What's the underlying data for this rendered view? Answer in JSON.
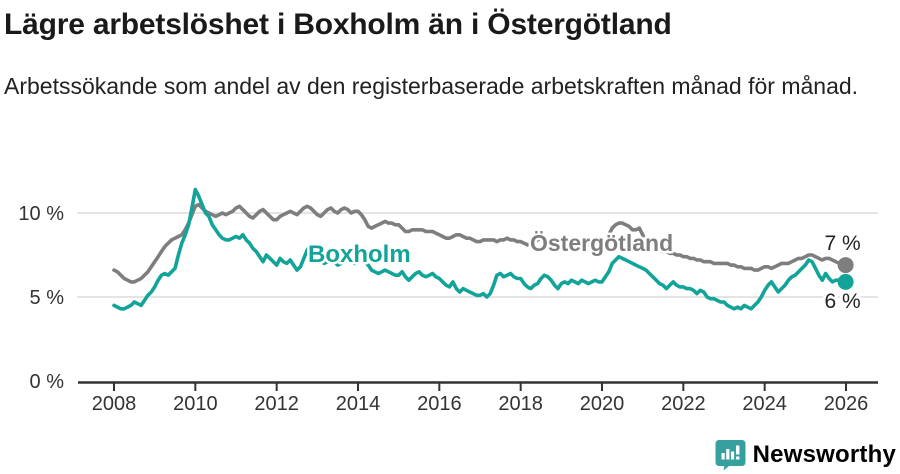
{
  "header": {
    "title": "Lägre arbetslöshet i Boxholm än i Östergötland",
    "subtitle": "Arbetssökande som andel av den registerbaserade arbetskraften månad för månad."
  },
  "footer": {
    "brand": "Newsworthy"
  },
  "colors": {
    "boxholm": "#12a499",
    "ostergotland": "#7e7e7e",
    "axis": "#333333",
    "grid": "#dcdcdc",
    "tick_text": "#333333",
    "end_label_text": "#222222",
    "brand": "#35a09d"
  },
  "chart_data": {
    "type": "line",
    "title": "Lägre arbetslöshet i Boxholm än i Östergötland",
    "subtitle": "Arbetssökande som andel av den registerbaserade arbetskraften månad för månad.",
    "x_unit": "month",
    "x_start": "2008-01",
    "x_end": "2025-12",
    "x_tick_years": [
      2008,
      2010,
      2012,
      2014,
      2016,
      2018,
      2020,
      2022,
      2024,
      2026
    ],
    "y_ticks": [
      0,
      5,
      10
    ],
    "y_tick_labels": [
      "0 %",
      "5 %",
      "10 %"
    ],
    "ylim": [
      0,
      11.8
    ],
    "grid": true,
    "legend": "inline-labels",
    "series": [
      {
        "name": "Östergötland",
        "color": "#7e7e7e",
        "end_label": "7 %",
        "values": [
          6.6,
          6.5,
          6.3,
          6.1,
          6.0,
          5.9,
          5.9,
          6.0,
          6.1,
          6.3,
          6.5,
          6.8,
          7.1,
          7.4,
          7.7,
          8.0,
          8.2,
          8.4,
          8.5,
          8.6,
          8.7,
          9.0,
          9.4,
          9.9,
          10.4,
          10.5,
          10.3,
          10.1,
          10.0,
          9.9,
          9.8,
          9.9,
          10.0,
          9.9,
          10.0,
          10.1,
          10.3,
          10.4,
          10.2,
          10.0,
          9.8,
          9.7,
          9.9,
          10.1,
          10.2,
          10.0,
          9.8,
          9.6,
          9.6,
          9.8,
          9.9,
          10.0,
          10.1,
          10.0,
          9.9,
          10.1,
          10.3,
          10.4,
          10.3,
          10.1,
          9.9,
          9.8,
          10.0,
          10.2,
          10.3,
          10.1,
          10.0,
          10.2,
          10.3,
          10.2,
          10.0,
          10.1,
          10.1,
          9.9,
          9.6,
          9.2,
          9.1,
          9.2,
          9.3,
          9.4,
          9.5,
          9.4,
          9.4,
          9.3,
          9.3,
          9.1,
          8.9,
          8.9,
          9.0,
          9.0,
          9.0,
          9.0,
          8.9,
          8.9,
          8.9,
          8.8,
          8.7,
          8.6,
          8.5,
          8.5,
          8.6,
          8.7,
          8.7,
          8.6,
          8.5,
          8.5,
          8.4,
          8.3,
          8.3,
          8.4,
          8.4,
          8.4,
          8.4,
          8.3,
          8.4,
          8.4,
          8.5,
          8.4,
          8.4,
          8.3,
          8.3,
          8.2,
          8.1,
          8.2,
          8.3,
          8.4,
          8.5,
          8.5,
          8.4,
          8.4,
          8.3,
          8.2,
          8.1,
          8.0,
          8.1,
          8.2,
          8.3,
          8.3,
          8.3,
          8.2,
          8.1,
          8.1,
          8.1,
          8.2,
          8.3,
          8.4,
          8.7,
          9.1,
          9.3,
          9.4,
          9.4,
          9.3,
          9.2,
          9.0,
          9.0,
          9.1,
          8.7,
          8.3,
          8.0,
          7.9,
          7.8,
          7.8,
          7.7,
          7.7,
          7.6,
          7.6,
          7.5,
          7.5,
          7.4,
          7.4,
          7.3,
          7.3,
          7.2,
          7.2,
          7.1,
          7.1,
          7.1,
          7.0,
          7.0,
          7.0,
          7.0,
          7.0,
          6.9,
          6.9,
          6.8,
          6.8,
          6.7,
          6.7,
          6.7,
          6.6,
          6.6,
          6.7,
          6.8,
          6.8,
          6.7,
          6.8,
          6.9,
          7.0,
          7.0,
          7.0,
          7.1,
          7.2,
          7.3,
          7.3,
          7.4,
          7.5,
          7.5,
          7.4,
          7.3,
          7.2,
          7.3,
          7.3,
          7.2,
          7.1,
          7.0,
          6.9
        ]
      },
      {
        "name": "Boxholm",
        "color": "#12a499",
        "end_label": "6 %",
        "values": [
          4.5,
          4.4,
          4.3,
          4.3,
          4.4,
          4.5,
          4.7,
          4.6,
          4.5,
          4.8,
          5.1,
          5.3,
          5.6,
          6.0,
          6.3,
          6.4,
          6.3,
          6.5,
          6.7,
          7.5,
          8.2,
          8.7,
          9.3,
          10.3,
          11.4,
          11.0,
          10.5,
          10.0,
          9.8,
          9.3,
          9.0,
          8.7,
          8.5,
          8.4,
          8.4,
          8.5,
          8.6,
          8.5,
          8.7,
          8.4,
          8.2,
          7.9,
          7.7,
          7.4,
          7.1,
          7.5,
          7.3,
          7.1,
          6.9,
          7.3,
          7.1,
          7.0,
          7.2,
          6.9,
          6.6,
          6.8,
          7.3,
          7.8,
          8.1,
          7.8,
          7.5,
          7.2,
          7.0,
          7.1,
          7.3,
          7.1,
          6.9,
          7.0,
          7.2,
          7.3,
          7.1,
          7.0,
          7.2,
          7.3,
          7.1,
          6.9,
          6.6,
          6.5,
          6.4,
          6.5,
          6.6,
          6.5,
          6.4,
          6.3,
          6.3,
          6.5,
          6.2,
          6.0,
          6.2,
          6.4,
          6.5,
          6.3,
          6.2,
          6.3,
          6.4,
          6.2,
          6.1,
          5.9,
          5.7,
          5.6,
          5.9,
          5.5,
          5.3,
          5.5,
          5.4,
          5.3,
          5.2,
          5.1,
          5.1,
          5.2,
          5.0,
          5.2,
          5.7,
          6.3,
          6.4,
          6.2,
          6.3,
          6.4,
          6.2,
          6.1,
          6.1,
          5.8,
          5.6,
          5.5,
          5.7,
          5.8,
          6.1,
          6.3,
          6.2,
          6.0,
          5.7,
          5.5,
          5.8,
          5.9,
          5.8,
          6.0,
          5.9,
          5.8,
          6.0,
          5.9,
          5.8,
          5.9,
          6.0,
          5.9,
          5.9,
          6.2,
          6.5,
          7.0,
          7.2,
          7.4,
          7.3,
          7.2,
          7.1,
          7.0,
          6.9,
          6.8,
          6.7,
          6.6,
          6.4,
          6.2,
          6.0,
          5.8,
          5.7,
          5.5,
          5.7,
          5.9,
          5.7,
          5.6,
          5.6,
          5.5,
          5.5,
          5.4,
          5.2,
          5.4,
          5.3,
          5.0,
          4.9,
          4.9,
          4.8,
          4.7,
          4.7,
          4.5,
          4.4,
          4.3,
          4.4,
          4.3,
          4.5,
          4.4,
          4.3,
          4.5,
          4.7,
          5.0,
          5.4,
          5.7,
          5.9,
          5.6,
          5.3,
          5.5,
          5.7,
          6.0,
          6.2,
          6.3,
          6.5,
          6.7,
          6.9,
          7.2,
          7.1,
          6.7,
          6.3,
          6.0,
          6.4,
          6.1,
          5.9,
          6.0,
          6.0,
          5.9
        ]
      }
    ]
  }
}
